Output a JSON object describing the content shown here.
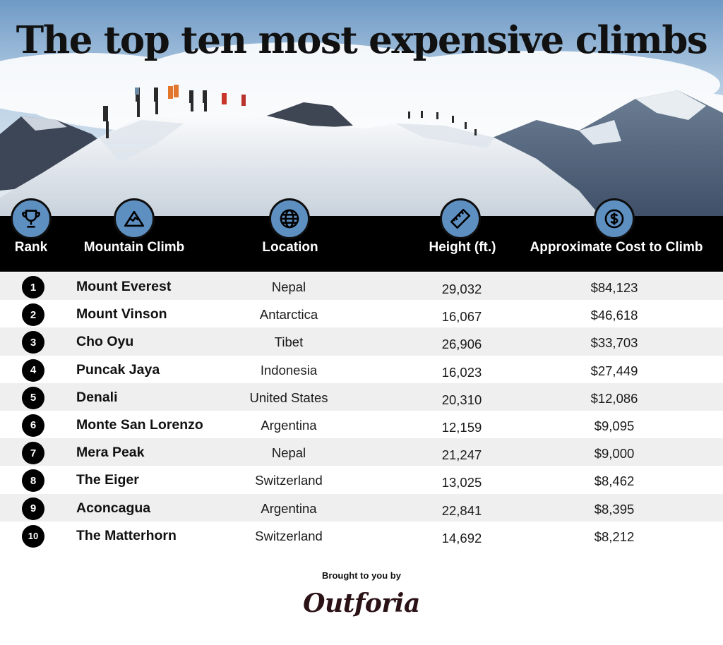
{
  "title": "The top ten most expensive climbs",
  "colors": {
    "icon_fill": "#5e8fc1",
    "header_bg": "#000000",
    "row_alt": "#efefef",
    "brand": "#2b1216"
  },
  "chart_data": {
    "type": "table",
    "columns": [
      "Rank",
      "Mountain Climb",
      "Location",
      "Height (ft.)",
      "Approximate Cost to Climb"
    ],
    "column_icons": [
      "trophy-icon",
      "mountain-icon",
      "globe-icon",
      "ruler-icon",
      "dollar-icon"
    ],
    "rows": [
      {
        "rank": "1",
        "mountain": "Mount Everest",
        "location": "Nepal",
        "height": "29,032",
        "cost": "$84,123"
      },
      {
        "rank": "2",
        "mountain": "Mount Vinson",
        "location": "Antarctica",
        "height": "16,067",
        "cost": "$46,618"
      },
      {
        "rank": "3",
        "mountain": "Cho Oyu",
        "location": "Tibet",
        "height": "26,906",
        "cost": "$33,703"
      },
      {
        "rank": "4",
        "mountain": "Puncak Jaya",
        "location": "Indonesia",
        "height": "16,023",
        "cost": "$27,449"
      },
      {
        "rank": "5",
        "mountain": "Denali",
        "location": "United States",
        "height": "20,310",
        "cost": "$12,086"
      },
      {
        "rank": "6",
        "mountain": "Monte San Lorenzo",
        "location": "Argentina",
        "height": "12,159",
        "cost": "$9,095"
      },
      {
        "rank": "7",
        "mountain": "Mera Peak",
        "location": "Nepal",
        "height": "21,247",
        "cost": "$9,000"
      },
      {
        "rank": "8",
        "mountain": "The Eiger",
        "location": "Switzerland",
        "height": "13,025",
        "cost": "$8,462"
      },
      {
        "rank": "9",
        "mountain": "Aconcagua",
        "location": "Argentina",
        "height": "22,841",
        "cost": "$8,395"
      },
      {
        "rank": "10",
        "mountain": "The Matterhorn",
        "location": "Switzerland",
        "height": "14,692",
        "cost": "$8,212"
      }
    ]
  },
  "footer": {
    "note": "Brought to you by",
    "brand": "Outforia"
  }
}
